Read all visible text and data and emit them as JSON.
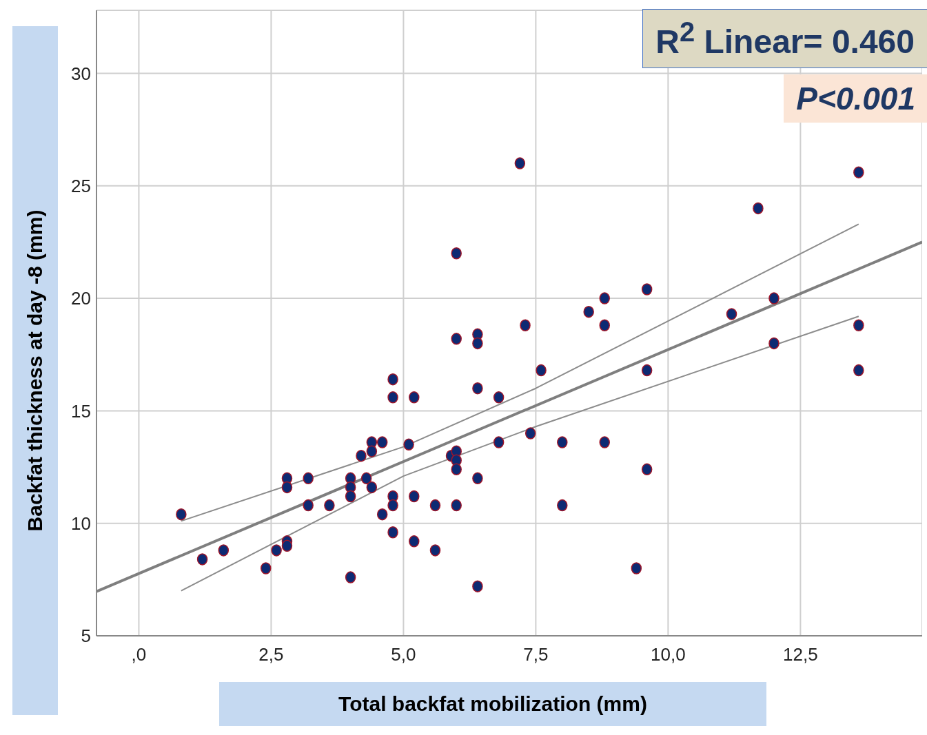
{
  "chart_data": {
    "type": "scatter",
    "xlabel": "Total backfat mobilization (mm)",
    "ylabel": "Backfat thickness at day -8 (mm)",
    "annotations": [
      "R$^{2}$ Linear= 0.460",
      "P<0.001"
    ],
    "xlim": [
      -0.8,
      14.8
    ],
    "ylim": [
      5,
      32.8
    ],
    "xticks": [
      {
        "value": 0,
        "label": ",0"
      },
      {
        "value": 2.5,
        "label": "2,5"
      },
      {
        "value": 5,
        "label": "5,0"
      },
      {
        "value": 7.5,
        "label": "7,5"
      },
      {
        "value": 10,
        "label": "10,0"
      },
      {
        "value": 12.5,
        "label": "12,5"
      }
    ],
    "yticks": [
      5,
      10,
      15,
      20,
      25,
      30
    ],
    "grid": true,
    "marker": "circle",
    "series": [
      {
        "color": "#0d2a73",
        "x": [
          0.8,
          1.2,
          1.6,
          2.4,
          2.6,
          2.8,
          2.8,
          2.8,
          2.8,
          3.2,
          3.2,
          3.6,
          4.0,
          4.0,
          4.0,
          4.0,
          4.2,
          4.3,
          4.4,
          4.4,
          4.4,
          4.6,
          4.6,
          4.8,
          4.8,
          4.8,
          4.8,
          4.8,
          5.1,
          5.2,
          5.2,
          5.2,
          5.6,
          5.6,
          5.9,
          6.0,
          6.0,
          6.0,
          6.0,
          6.0,
          6.0,
          6.4,
          6.4,
          6.4,
          6.4,
          6.4,
          6.8,
          6.8,
          7.2,
          7.3,
          7.4,
          7.6,
          8.0,
          8.0,
          8.5,
          8.8,
          8.8,
          8.8,
          9.4,
          9.6,
          9.6,
          9.6,
          11.2,
          11.7,
          12.0,
          12.0,
          13.6,
          13.6,
          13.6
        ],
        "values": [
          10.4,
          8.4,
          8.8,
          8.0,
          8.8,
          9.2,
          9.0,
          12.0,
          11.6,
          12.0,
          10.8,
          10.8,
          12.0,
          11.6,
          11.2,
          7.6,
          13.0,
          12.0,
          13.6,
          13.2,
          11.6,
          13.6,
          10.4,
          16.4,
          15.6,
          11.2,
          10.8,
          9.6,
          13.5,
          15.6,
          11.2,
          9.2,
          10.8,
          8.8,
          13.0,
          13.2,
          12.8,
          12.4,
          22.0,
          18.2,
          10.8,
          18.4,
          18.0,
          16.0,
          12.0,
          7.2,
          15.6,
          13.6,
          26.0,
          18.8,
          14.0,
          16.8,
          13.6,
          10.8,
          19.4,
          20.0,
          18.8,
          13.6,
          8.0,
          20.4,
          16.8,
          12.4,
          19.3,
          24.0,
          20.0,
          18.0,
          25.6,
          18.8,
          16.8
        ]
      },
      {
        "type": "line",
        "marker": "none",
        "color": "#7f7f7f",
        "x": [
          -0.8,
          14.8
        ],
        "values": [
          6.97,
          22.5
        ]
      },
      {
        "type": "line",
        "color": "#8c8c8c",
        "x": [
          0.8,
          5,
          7.5,
          13.6
        ],
        "values": [
          10.1,
          13.4,
          16.0,
          23.3
        ],
        "marker": "none"
      },
      {
        "type": "line",
        "color": "#8c8c8c",
        "x": [
          0.8,
          5,
          7.5,
          13.6
        ],
        "values": [
          7.0,
          12.1,
          14.3,
          19.2
        ],
        "marker": "none"
      }
    ]
  }
}
